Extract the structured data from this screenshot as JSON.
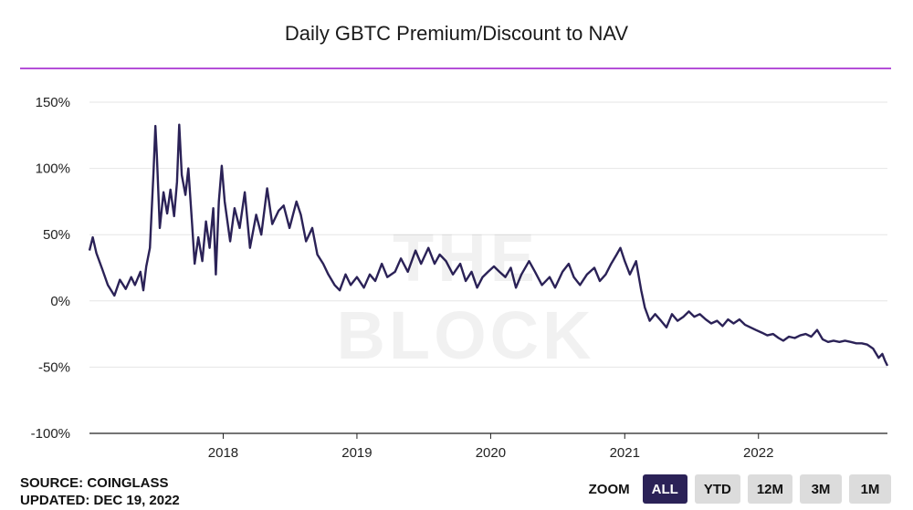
{
  "title": "Daily GBTC Premium/Discount to NAV",
  "watermark": "THE BLOCK",
  "source": "SOURCE: COINGLASS",
  "updated": "UPDATED: DEC 19, 2022",
  "zoom": {
    "label": "ZOOM",
    "buttons": [
      "ALL",
      "YTD",
      "12M",
      "3M",
      "1M"
    ],
    "active": "ALL"
  },
  "colors": {
    "line": "#2b2257",
    "title_rule": "#b44fd8",
    "grid": "#e6e6e6",
    "axis": "#222222",
    "zoom_active": "#2b2257"
  },
  "chart_data": {
    "type": "line",
    "title": "Daily GBTC Premium/Discount to NAV",
    "xlabel": "",
    "ylabel": "",
    "y_unit": "%",
    "ylim": [
      -100,
      150
    ],
    "yticks": [
      -100,
      -50,
      0,
      50,
      100,
      150
    ],
    "ytick_labels": [
      "-100%",
      "-50%",
      "0%",
      "50%",
      "100%",
      "150%"
    ],
    "xlim": [
      "2017-01-01",
      "2022-12-19"
    ],
    "xticks": [
      "2018-01-01",
      "2019-01-01",
      "2020-01-01",
      "2021-01-01",
      "2022-01-01"
    ],
    "xtick_labels": [
      "2018",
      "2019",
      "2020",
      "2021",
      "2022"
    ],
    "grid": true,
    "legend": "none",
    "series": [
      {
        "points": [
          [
            "2017-01-01",
            38
          ],
          [
            "2017-01-10",
            48
          ],
          [
            "2017-01-20",
            36
          ],
          [
            "2017-02-05",
            24
          ],
          [
            "2017-02-20",
            12
          ],
          [
            "2017-03-10",
            4
          ],
          [
            "2017-03-25",
            16
          ],
          [
            "2017-04-10",
            9
          ],
          [
            "2017-04-25",
            18
          ],
          [
            "2017-05-05",
            12
          ],
          [
            "2017-05-20",
            22
          ],
          [
            "2017-05-28",
            8
          ],
          [
            "2017-06-05",
            26
          ],
          [
            "2017-06-15",
            40
          ],
          [
            "2017-06-25",
            98
          ],
          [
            "2017-06-30",
            132
          ],
          [
            "2017-07-04",
            110
          ],
          [
            "2017-07-12",
            55
          ],
          [
            "2017-07-22",
            82
          ],
          [
            "2017-08-01",
            66
          ],
          [
            "2017-08-10",
            84
          ],
          [
            "2017-08-20",
            64
          ],
          [
            "2017-08-28",
            90
          ],
          [
            "2017-09-03",
            133
          ],
          [
            "2017-09-10",
            95
          ],
          [
            "2017-09-20",
            80
          ],
          [
            "2017-09-28",
            100
          ],
          [
            "2017-10-08",
            58
          ],
          [
            "2017-10-15",
            28
          ],
          [
            "2017-10-25",
            48
          ],
          [
            "2017-11-05",
            30
          ],
          [
            "2017-11-15",
            60
          ],
          [
            "2017-11-25",
            40
          ],
          [
            "2017-12-05",
            70
          ],
          [
            "2017-12-12",
            20
          ],
          [
            "2017-12-20",
            75
          ],
          [
            "2017-12-28",
            102
          ],
          [
            "2018-01-05",
            75
          ],
          [
            "2018-01-20",
            45
          ],
          [
            "2018-02-01",
            70
          ],
          [
            "2018-02-15",
            55
          ],
          [
            "2018-03-01",
            82
          ],
          [
            "2018-03-15",
            40
          ],
          [
            "2018-04-01",
            65
          ],
          [
            "2018-04-15",
            50
          ],
          [
            "2018-05-01",
            85
          ],
          [
            "2018-05-15",
            58
          ],
          [
            "2018-06-01",
            68
          ],
          [
            "2018-06-15",
            72
          ],
          [
            "2018-07-01",
            55
          ],
          [
            "2018-07-20",
            75
          ],
          [
            "2018-08-01",
            65
          ],
          [
            "2018-08-15",
            45
          ],
          [
            "2018-09-01",
            55
          ],
          [
            "2018-09-15",
            35
          ],
          [
            "2018-10-01",
            28
          ],
          [
            "2018-10-15",
            20
          ],
          [
            "2018-11-01",
            12
          ],
          [
            "2018-11-15",
            8
          ],
          [
            "2018-12-01",
            20
          ],
          [
            "2018-12-15",
            12
          ],
          [
            "2019-01-01",
            18
          ],
          [
            "2019-01-20",
            10
          ],
          [
            "2019-02-05",
            20
          ],
          [
            "2019-02-20",
            15
          ],
          [
            "2019-03-10",
            28
          ],
          [
            "2019-03-25",
            18
          ],
          [
            "2019-04-15",
            22
          ],
          [
            "2019-05-01",
            32
          ],
          [
            "2019-05-20",
            22
          ],
          [
            "2019-06-10",
            38
          ],
          [
            "2019-06-25",
            28
          ],
          [
            "2019-07-15",
            40
          ],
          [
            "2019-08-01",
            28
          ],
          [
            "2019-08-15",
            35
          ],
          [
            "2019-09-01",
            30
          ],
          [
            "2019-09-20",
            20
          ],
          [
            "2019-10-10",
            28
          ],
          [
            "2019-10-25",
            15
          ],
          [
            "2019-11-10",
            22
          ],
          [
            "2019-11-25",
            10
          ],
          [
            "2019-12-10",
            18
          ],
          [
            "2019-12-25",
            22
          ],
          [
            "2020-01-10",
            26
          ],
          [
            "2020-01-25",
            22
          ],
          [
            "2020-02-10",
            18
          ],
          [
            "2020-02-25",
            25
          ],
          [
            "2020-03-10",
            10
          ],
          [
            "2020-03-25",
            20
          ],
          [
            "2020-04-15",
            30
          ],
          [
            "2020-05-01",
            22
          ],
          [
            "2020-05-20",
            12
          ],
          [
            "2020-06-10",
            18
          ],
          [
            "2020-06-25",
            10
          ],
          [
            "2020-07-15",
            22
          ],
          [
            "2020-08-01",
            28
          ],
          [
            "2020-08-15",
            18
          ],
          [
            "2020-09-01",
            12
          ],
          [
            "2020-09-20",
            20
          ],
          [
            "2020-10-10",
            25
          ],
          [
            "2020-10-25",
            15
          ],
          [
            "2020-11-10",
            20
          ],
          [
            "2020-11-25",
            28
          ],
          [
            "2020-12-10",
            35
          ],
          [
            "2020-12-20",
            40
          ],
          [
            "2021-01-01",
            30
          ],
          [
            "2021-01-15",
            20
          ],
          [
            "2021-02-01",
            30
          ],
          [
            "2021-02-15",
            8
          ],
          [
            "2021-02-25",
            -5
          ],
          [
            "2021-03-10",
            -15
          ],
          [
            "2021-03-25",
            -10
          ],
          [
            "2021-04-10",
            -15
          ],
          [
            "2021-04-25",
            -20
          ],
          [
            "2021-05-10",
            -10
          ],
          [
            "2021-05-25",
            -15
          ],
          [
            "2021-06-10",
            -12
          ],
          [
            "2021-06-25",
            -8
          ],
          [
            "2021-07-10",
            -12
          ],
          [
            "2021-07-25",
            -10
          ],
          [
            "2021-08-10",
            -14
          ],
          [
            "2021-08-25",
            -17
          ],
          [
            "2021-09-10",
            -15
          ],
          [
            "2021-09-25",
            -19
          ],
          [
            "2021-10-10",
            -14
          ],
          [
            "2021-10-25",
            -17
          ],
          [
            "2021-11-10",
            -14
          ],
          [
            "2021-11-25",
            -18
          ],
          [
            "2021-12-10",
            -20
          ],
          [
            "2021-12-25",
            -22
          ],
          [
            "2022-01-10",
            -24
          ],
          [
            "2022-01-25",
            -26
          ],
          [
            "2022-02-10",
            -25
          ],
          [
            "2022-02-25",
            -28
          ],
          [
            "2022-03-10",
            -30
          ],
          [
            "2022-03-25",
            -27
          ],
          [
            "2022-04-10",
            -28
          ],
          [
            "2022-04-25",
            -26
          ],
          [
            "2022-05-10",
            -25
          ],
          [
            "2022-05-25",
            -27
          ],
          [
            "2022-06-10",
            -22
          ],
          [
            "2022-06-25",
            -29
          ],
          [
            "2022-07-10",
            -31
          ],
          [
            "2022-07-25",
            -30
          ],
          [
            "2022-08-10",
            -31
          ],
          [
            "2022-08-25",
            -30
          ],
          [
            "2022-09-10",
            -31
          ],
          [
            "2022-09-25",
            -32
          ],
          [
            "2022-10-10",
            -32
          ],
          [
            "2022-10-25",
            -33
          ],
          [
            "2022-11-10",
            -36
          ],
          [
            "2022-11-25",
            -43
          ],
          [
            "2022-12-05",
            -40
          ],
          [
            "2022-12-12",
            -45
          ],
          [
            "2022-12-19",
            -49
          ]
        ]
      }
    ]
  }
}
